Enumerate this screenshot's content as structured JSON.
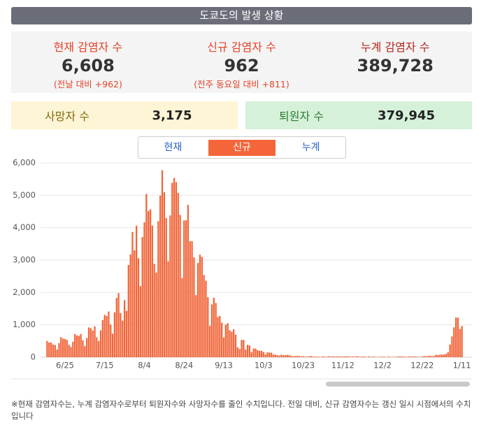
{
  "header": {
    "title": "도쿄도의 발생 상황"
  },
  "stats": [
    {
      "label": "현재 감염자 수",
      "value": "6,608",
      "note": "(전날 대비 +962)"
    },
    {
      "label": "신규 감염자 수",
      "value": "962",
      "note": "(전주 동요일 대비 +811)"
    },
    {
      "label": "누계 감염자 수",
      "value": "389,728"
    }
  ],
  "summary": [
    {
      "label": "사망자 수",
      "value": "3,175"
    },
    {
      "label": "퇴원자 수",
      "value": "379,945"
    }
  ],
  "tabs": [
    "현재",
    "신규",
    "누계"
  ],
  "active_tab": 1,
  "chart_data": {
    "type": "bar",
    "color": "#f0663a",
    "grid": true,
    "ylim": [
      0,
      6000
    ],
    "yticks": [
      0,
      {
        "value": 1000,
        "label": "1,000"
      },
      {
        "value": 2000,
        "label": "2,000"
      },
      {
        "value": 3000,
        "label": "3,000"
      },
      {
        "value": 4000,
        "label": "4,000"
      },
      {
        "value": 5000,
        "label": "5,000"
      },
      {
        "value": 6000,
        "label": "6,000"
      }
    ],
    "categories": [
      null,
      null,
      null,
      null,
      null,
      null,
      null,
      null,
      null,
      "6/25",
      null,
      null,
      null,
      null,
      null,
      null,
      null,
      null,
      null,
      null,
      null,
      null,
      null,
      null,
      null,
      null,
      null,
      null,
      null,
      "7/15",
      null,
      null,
      null,
      null,
      null,
      null,
      null,
      null,
      null,
      null,
      null,
      null,
      null,
      null,
      null,
      null,
      null,
      null,
      null,
      "8/4",
      null,
      null,
      null,
      null,
      null,
      null,
      null,
      null,
      null,
      null,
      null,
      null,
      null,
      null,
      null,
      null,
      null,
      null,
      null,
      "8/24",
      null,
      null,
      null,
      null,
      null,
      null,
      null,
      null,
      null,
      null,
      null,
      null,
      null,
      null,
      null,
      null,
      null,
      null,
      null,
      "9/13",
      null,
      null,
      null,
      null,
      null,
      null,
      null,
      null,
      null,
      null,
      null,
      null,
      null,
      null,
      null,
      null,
      null,
      null,
      null,
      "10/3",
      null,
      null,
      null,
      null,
      null,
      null,
      null,
      null,
      null,
      null,
      null,
      null,
      null,
      null,
      null,
      null,
      null,
      null,
      null,
      "10/23",
      null,
      null,
      null,
      null,
      null,
      null,
      null,
      null,
      null,
      null,
      null,
      null,
      null,
      null,
      null,
      null,
      null,
      null,
      null,
      "11/12",
      null,
      null,
      null,
      null,
      null,
      null,
      null,
      null,
      null,
      null,
      null,
      null,
      null,
      null,
      null,
      null,
      null,
      null,
      null,
      "12/2",
      null,
      null,
      null,
      null,
      null,
      null,
      null,
      null,
      null,
      null,
      null,
      null,
      null,
      null,
      null,
      null,
      null,
      null,
      null,
      "12/22",
      null,
      null,
      null,
      null,
      null,
      null,
      null,
      null,
      null,
      null,
      null,
      null,
      null,
      null,
      null,
      null,
      null,
      null,
      null,
      "1/11"
    ],
    "values": [
      501,
      452,
      453,
      388,
      376,
      236,
      435,
      619,
      570,
      562,
      534,
      386,
      317,
      476,
      714,
      673,
      660,
      716,
      518,
      342,
      593,
      920,
      896,
      822,
      950,
      614,
      502,
      830,
      1149,
      1308,
      1271,
      1410,
      1008,
      727,
      1387,
      1832,
      1979,
      1359,
      1128,
      1763,
      1429,
      2848,
      3177,
      3865,
      3300,
      4058,
      3058,
      2195,
      3709,
      4166,
      5042,
      4515,
      4566,
      4066,
      2884,
      2612,
      4200,
      4989,
      5773,
      5094,
      4295,
      2962,
      4377,
      5386,
      5534,
      5405,
      5074,
      4392,
      2447,
      4220,
      4228,
      4704,
      3581,
      3581,
      3081,
      1915,
      2909,
      3168,
      3099,
      2539,
      2362,
      1853,
      968,
      1629,
      1834,
      1675,
      1242,
      1273,
      1067,
      611,
      1004,
      1052,
      831,
      782,
      862,
      697,
      302,
      253,
      537,
      531,
      235,
      382,
      362,
      154,
      267,
      267,
      218,
      200,
      196,
      161,
      87,
      149,
      144,
      138,
      82,
      82,
      60,
      49,
      77,
      66,
      62,
      72,
      66,
      40,
      29,
      36,
      41,
      36,
      26,
      32,
      19,
      17,
      29,
      36,
      20,
      21,
      17,
      16,
      9,
      29,
      16,
      18,
      31,
      21,
      25,
      19,
      24,
      26,
      21,
      20,
      23,
      28,
      24,
      15,
      22,
      15,
      32,
      19,
      18,
      18,
      23,
      6,
      26,
      12,
      20,
      17,
      10,
      11,
      15,
      16,
      15,
      10,
      21,
      12,
      13,
      11,
      14,
      25,
      22,
      24,
      21,
      13,
      24,
      21,
      20,
      25,
      20,
      11,
      10,
      21,
      37,
      31,
      37,
      46,
      31,
      38,
      76,
      64,
      78,
      79,
      84,
      103,
      151,
      390,
      641,
      922,
      1224,
      1223,
      871,
      962
    ]
  },
  "footnote": "※현재 감염자수는, 누계 감염자수로부터 퇴원자수와 사망자수를 줄인 수치입니다. 전일 대비, 신규 감염자수는 갱신 일시 시점에서의 수치입니다"
}
